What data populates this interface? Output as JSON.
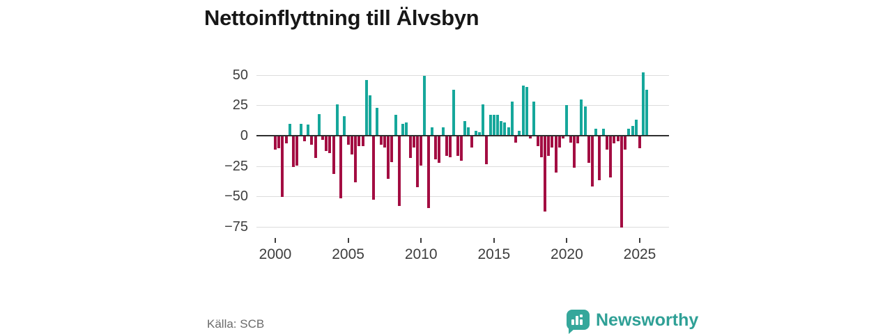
{
  "header": {
    "title": "Nettoinflyttning till Älvsbyn"
  },
  "footer": {
    "source": "Källa: SCB",
    "brand": "Newsworthy"
  },
  "colors": {
    "positive": "#16a79b",
    "negative": "#a30d42",
    "grid": "#dcdcdc",
    "zero_line": "#2e2e2e",
    "axis_text": "#3d3d3d",
    "muted_text": "#6b6b6b",
    "brand_teal": "#2fa096"
  },
  "chart_data": {
    "type": "bar",
    "title": "Nettoinflyttning till Älvsbyn",
    "series_name": "Nettoinflyttning",
    "grid": "horizontal",
    "legend": "none",
    "ylim": [
      -80,
      62
    ],
    "y_ticks": [
      50,
      25,
      0,
      -25,
      -50,
      -75
    ],
    "y_tick_labels": [
      "50",
      "25",
      "0",
      "−25",
      "−50",
      "−75"
    ],
    "x_tick_years": [
      2000,
      2005,
      2010,
      2015,
      2020,
      2025
    ],
    "categories": [
      "2000Q1",
      "2000Q2",
      "2000Q3",
      "2000Q4",
      "2001Q1",
      "2001Q2",
      "2001Q3",
      "2001Q4",
      "2002Q1",
      "2002Q2",
      "2002Q3",
      "2002Q4",
      "2003Q1",
      "2003Q2",
      "2003Q3",
      "2003Q4",
      "2004Q1",
      "2004Q2",
      "2004Q3",
      "2004Q4",
      "2005Q1",
      "2005Q2",
      "2005Q3",
      "2005Q4",
      "2006Q1",
      "2006Q2",
      "2006Q3",
      "2006Q4",
      "2007Q1",
      "2007Q2",
      "2007Q3",
      "2007Q4",
      "2008Q1",
      "2008Q2",
      "2008Q3",
      "2008Q4",
      "2009Q1",
      "2009Q2",
      "2009Q3",
      "2009Q4",
      "2010Q1",
      "2010Q2",
      "2010Q3",
      "2010Q4",
      "2011Q1",
      "2011Q2",
      "2011Q3",
      "2011Q4",
      "2012Q1",
      "2012Q2",
      "2012Q3",
      "2012Q4",
      "2013Q1",
      "2013Q2",
      "2013Q3",
      "2013Q4",
      "2014Q1",
      "2014Q2",
      "2014Q3",
      "2014Q4",
      "2015Q1",
      "2015Q2",
      "2015Q3",
      "2015Q4",
      "2016Q1",
      "2016Q2",
      "2016Q3",
      "2016Q4",
      "2017Q1",
      "2017Q2",
      "2017Q3",
      "2017Q4",
      "2018Q1",
      "2018Q2",
      "2018Q3",
      "2018Q4",
      "2019Q1",
      "2019Q2",
      "2019Q3",
      "2019Q4",
      "2020Q1",
      "2020Q2",
      "2020Q3",
      "2020Q4",
      "2021Q1",
      "2021Q2",
      "2021Q3",
      "2021Q4",
      "2022Q1",
      "2022Q2",
      "2022Q3",
      "2022Q4",
      "2023Q1",
      "2023Q2",
      "2023Q3",
      "2023Q4",
      "2024Q1",
      "2024Q2",
      "2024Q3",
      "2024Q4",
      "2025Q1",
      "2025Q2",
      "2025Q3"
    ],
    "values": [
      -11,
      -10,
      -50,
      -6,
      10,
      -25,
      -24,
      10,
      -4,
      9,
      -7,
      -18,
      18,
      -3,
      -12,
      -14,
      -31,
      26,
      -51,
      16,
      -7,
      -15,
      -38,
      -8,
      -8,
      46,
      33,
      -52,
      23,
      -7,
      -9,
      -35,
      -21,
      17,
      -57,
      10,
      11,
      -18,
      -9,
      -42,
      -24,
      49,
      -59,
      7,
      -19,
      -22,
      7,
      -16,
      -17,
      38,
      -16,
      -20,
      12,
      7,
      -9,
      4,
      3,
      26,
      -23,
      17,
      17,
      17,
      12,
      11,
      7,
      28,
      -5,
      4,
      41,
      40,
      -2,
      28,
      -8,
      -17,
      -62,
      -16,
      -9,
      -30,
      -9,
      -2,
      25,
      -5,
      -26,
      -6,
      30,
      24,
      -22,
      -41,
      6,
      -36,
      6,
      -11,
      -34,
      -6,
      -4,
      -75,
      -11,
      6,
      8,
      13,
      -10,
      52,
      38
    ]
  }
}
